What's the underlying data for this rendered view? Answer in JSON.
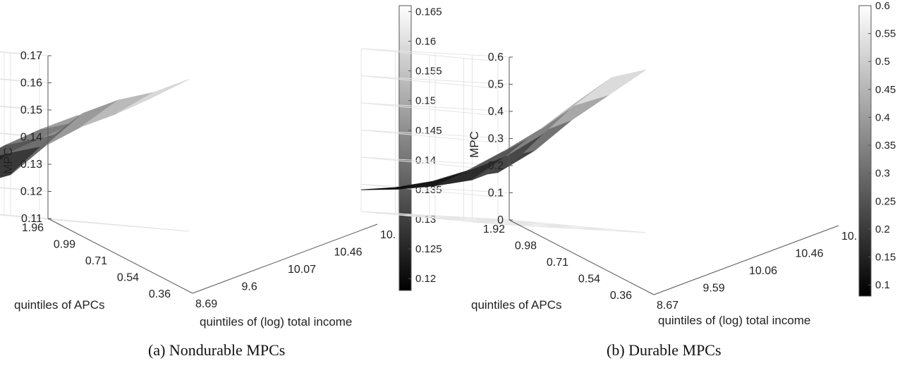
{
  "chart_data": [
    {
      "type": "surface",
      "caption": "(a) Nondurable MPCs",
      "xlabel": "quintiles of (log) total income",
      "ylabel": "quintiles of APCs",
      "zlabel": "MPC",
      "x_ticks": [
        "8.69",
        "9.6",
        "10.07",
        "10.46",
        "10."
      ],
      "y_ticks": [
        "1.96",
        "0.99",
        "0.71",
        "0.54",
        "0.36"
      ],
      "z_ticks": [
        "0.11",
        "0.12",
        "0.13",
        "0.14",
        "0.15",
        "0.16",
        "0.17"
      ],
      "zlim": [
        0.11,
        0.17
      ],
      "colormap": "gray",
      "colorbar_ticks": [
        "0.165",
        "0.16",
        "0.155",
        "0.15",
        "0.145",
        "0.14",
        "0.135",
        "0.13",
        "0.125",
        "0.12"
      ],
      "colorbar_range": [
        0.118,
        0.166
      ],
      "z": [
        [
          0.139,
          0.15,
          0.156,
          0.16,
          0.166
        ],
        [
          0.125,
          0.137,
          0.145,
          0.151,
          0.158
        ],
        [
          0.12,
          0.133,
          0.14,
          0.147,
          0.153
        ],
        [
          0.118,
          0.128,
          0.136,
          0.143,
          0.149
        ],
        [
          0.127,
          0.118,
          0.124,
          0.131,
          0.139
        ]
      ]
    },
    {
      "type": "surface",
      "caption": "(b) Durable MPCs",
      "xlabel": "quintiles of (log) total income",
      "ylabel": "quintiles of APCs",
      "zlabel": "MPC",
      "x_ticks": [
        "8.67",
        "9.59",
        "10.06",
        "10.46",
        "10."
      ],
      "y_ticks": [
        "1.92",
        "0.98",
        "0.71",
        "0.54",
        "0.36"
      ],
      "z_ticks": [
        "0",
        "0.1",
        "0.2",
        "0.3",
        "0.4",
        "0.5",
        "0.6"
      ],
      "zlim": [
        0,
        0.6
      ],
      "colormap": "gray",
      "colorbar_ticks": [
        "0.6",
        "0.55",
        "0.5",
        "0.45",
        "0.4",
        "0.35",
        "0.3",
        "0.25",
        "0.2",
        "0.15",
        "0.1"
      ],
      "colorbar_range": [
        0.08,
        0.6
      ],
      "z": [
        [
          0.2,
          0.33,
          0.46,
          0.56,
          0.6
        ],
        [
          0.14,
          0.24,
          0.35,
          0.45,
          0.5
        ],
        [
          0.11,
          0.18,
          0.26,
          0.34,
          0.4
        ],
        [
          0.09,
          0.13,
          0.18,
          0.24,
          0.28
        ],
        [
          0.08,
          0.1,
          0.13,
          0.16,
          0.19
        ]
      ]
    }
  ]
}
